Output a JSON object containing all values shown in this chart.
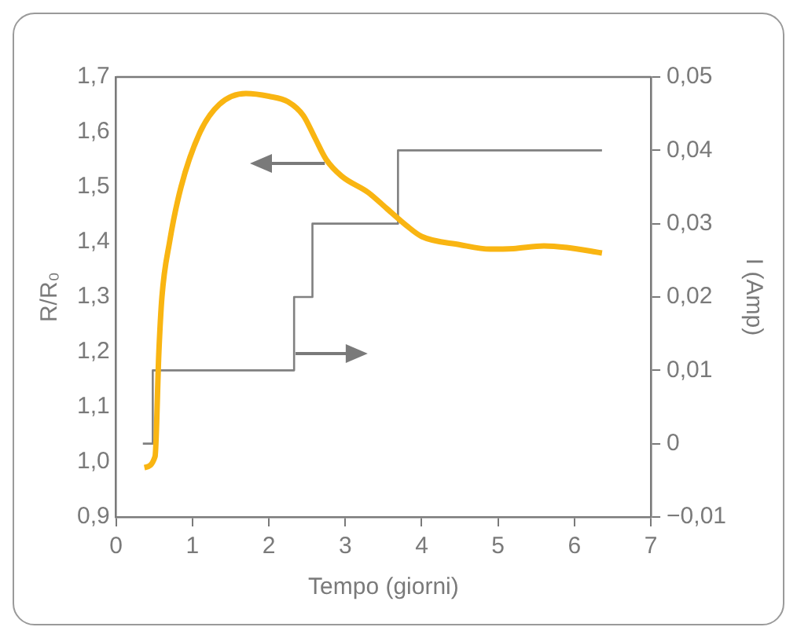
{
  "chart_data": {
    "type": "line",
    "xlabel": "Tempo (giorni)",
    "ylabel": "R/R₀",
    "y2label": "I (Amp)",
    "xlim": [
      0,
      7
    ],
    "xticks": [
      0,
      1,
      2,
      3,
      4,
      5,
      6,
      7
    ],
    "ylim": [
      0.9,
      1.7
    ],
    "yticks": [
      {
        "value": 0.9,
        "label": "0,9"
      },
      {
        "value": 1.0,
        "label": "1,0"
      },
      {
        "value": 1.1,
        "label": "1,1"
      },
      {
        "value": 1.2,
        "label": "1,2"
      },
      {
        "value": 1.3,
        "label": "1,3"
      },
      {
        "value": 1.4,
        "label": "1,4"
      },
      {
        "value": 1.5,
        "label": "1,5"
      },
      {
        "value": 1.6,
        "label": "1,6"
      },
      {
        "value": 1.7,
        "label": "1,7"
      }
    ],
    "y2lim": [
      -0.01,
      0.05
    ],
    "y2ticks": [
      {
        "value": -0.01,
        "label": "−0,01"
      },
      0,
      {
        "value": 0.01,
        "label": "0,01"
      },
      {
        "value": 0.02,
        "label": "0,02"
      },
      {
        "value": 0.03,
        "label": "0,03"
      },
      {
        "value": 0.04,
        "label": "0,04"
      },
      {
        "value": 0.05,
        "label": "0,05"
      }
    ],
    "grid": false,
    "legend": false,
    "series": [
      {
        "type": "line",
        "color": "#f9b512",
        "x": [
          0.37,
          0.51,
          0.56,
          0.6,
          0.7,
          0.85,
          1.1,
          1.35,
          1.7,
          2.0,
          2.25,
          2.45,
          2.6,
          2.75,
          2.95,
          3.3,
          3.55,
          3.8,
          4.0,
          4.5,
          4.9,
          5.2,
          5.6,
          5.9,
          6.36
        ],
        "values": [
          0.99,
          1.01,
          1.2,
          1.3,
          1.4,
          1.5,
          1.6,
          1.65,
          1.67,
          1.665,
          1.655,
          1.63,
          1.59,
          1.55,
          1.52,
          1.49,
          1.46,
          1.43,
          1.41,
          1.395,
          1.387,
          1.388,
          1.393,
          1.39,
          1.38
        ]
      },
      {
        "type": "step",
        "axis": "y2",
        "color": "#808080",
        "x": [
          0.35,
          0.48,
          2.33,
          2.57,
          3.69,
          6.36
        ],
        "values": [
          0,
          0.01,
          0.02,
          0.03,
          0.04,
          0.04
        ]
      }
    ]
  }
}
